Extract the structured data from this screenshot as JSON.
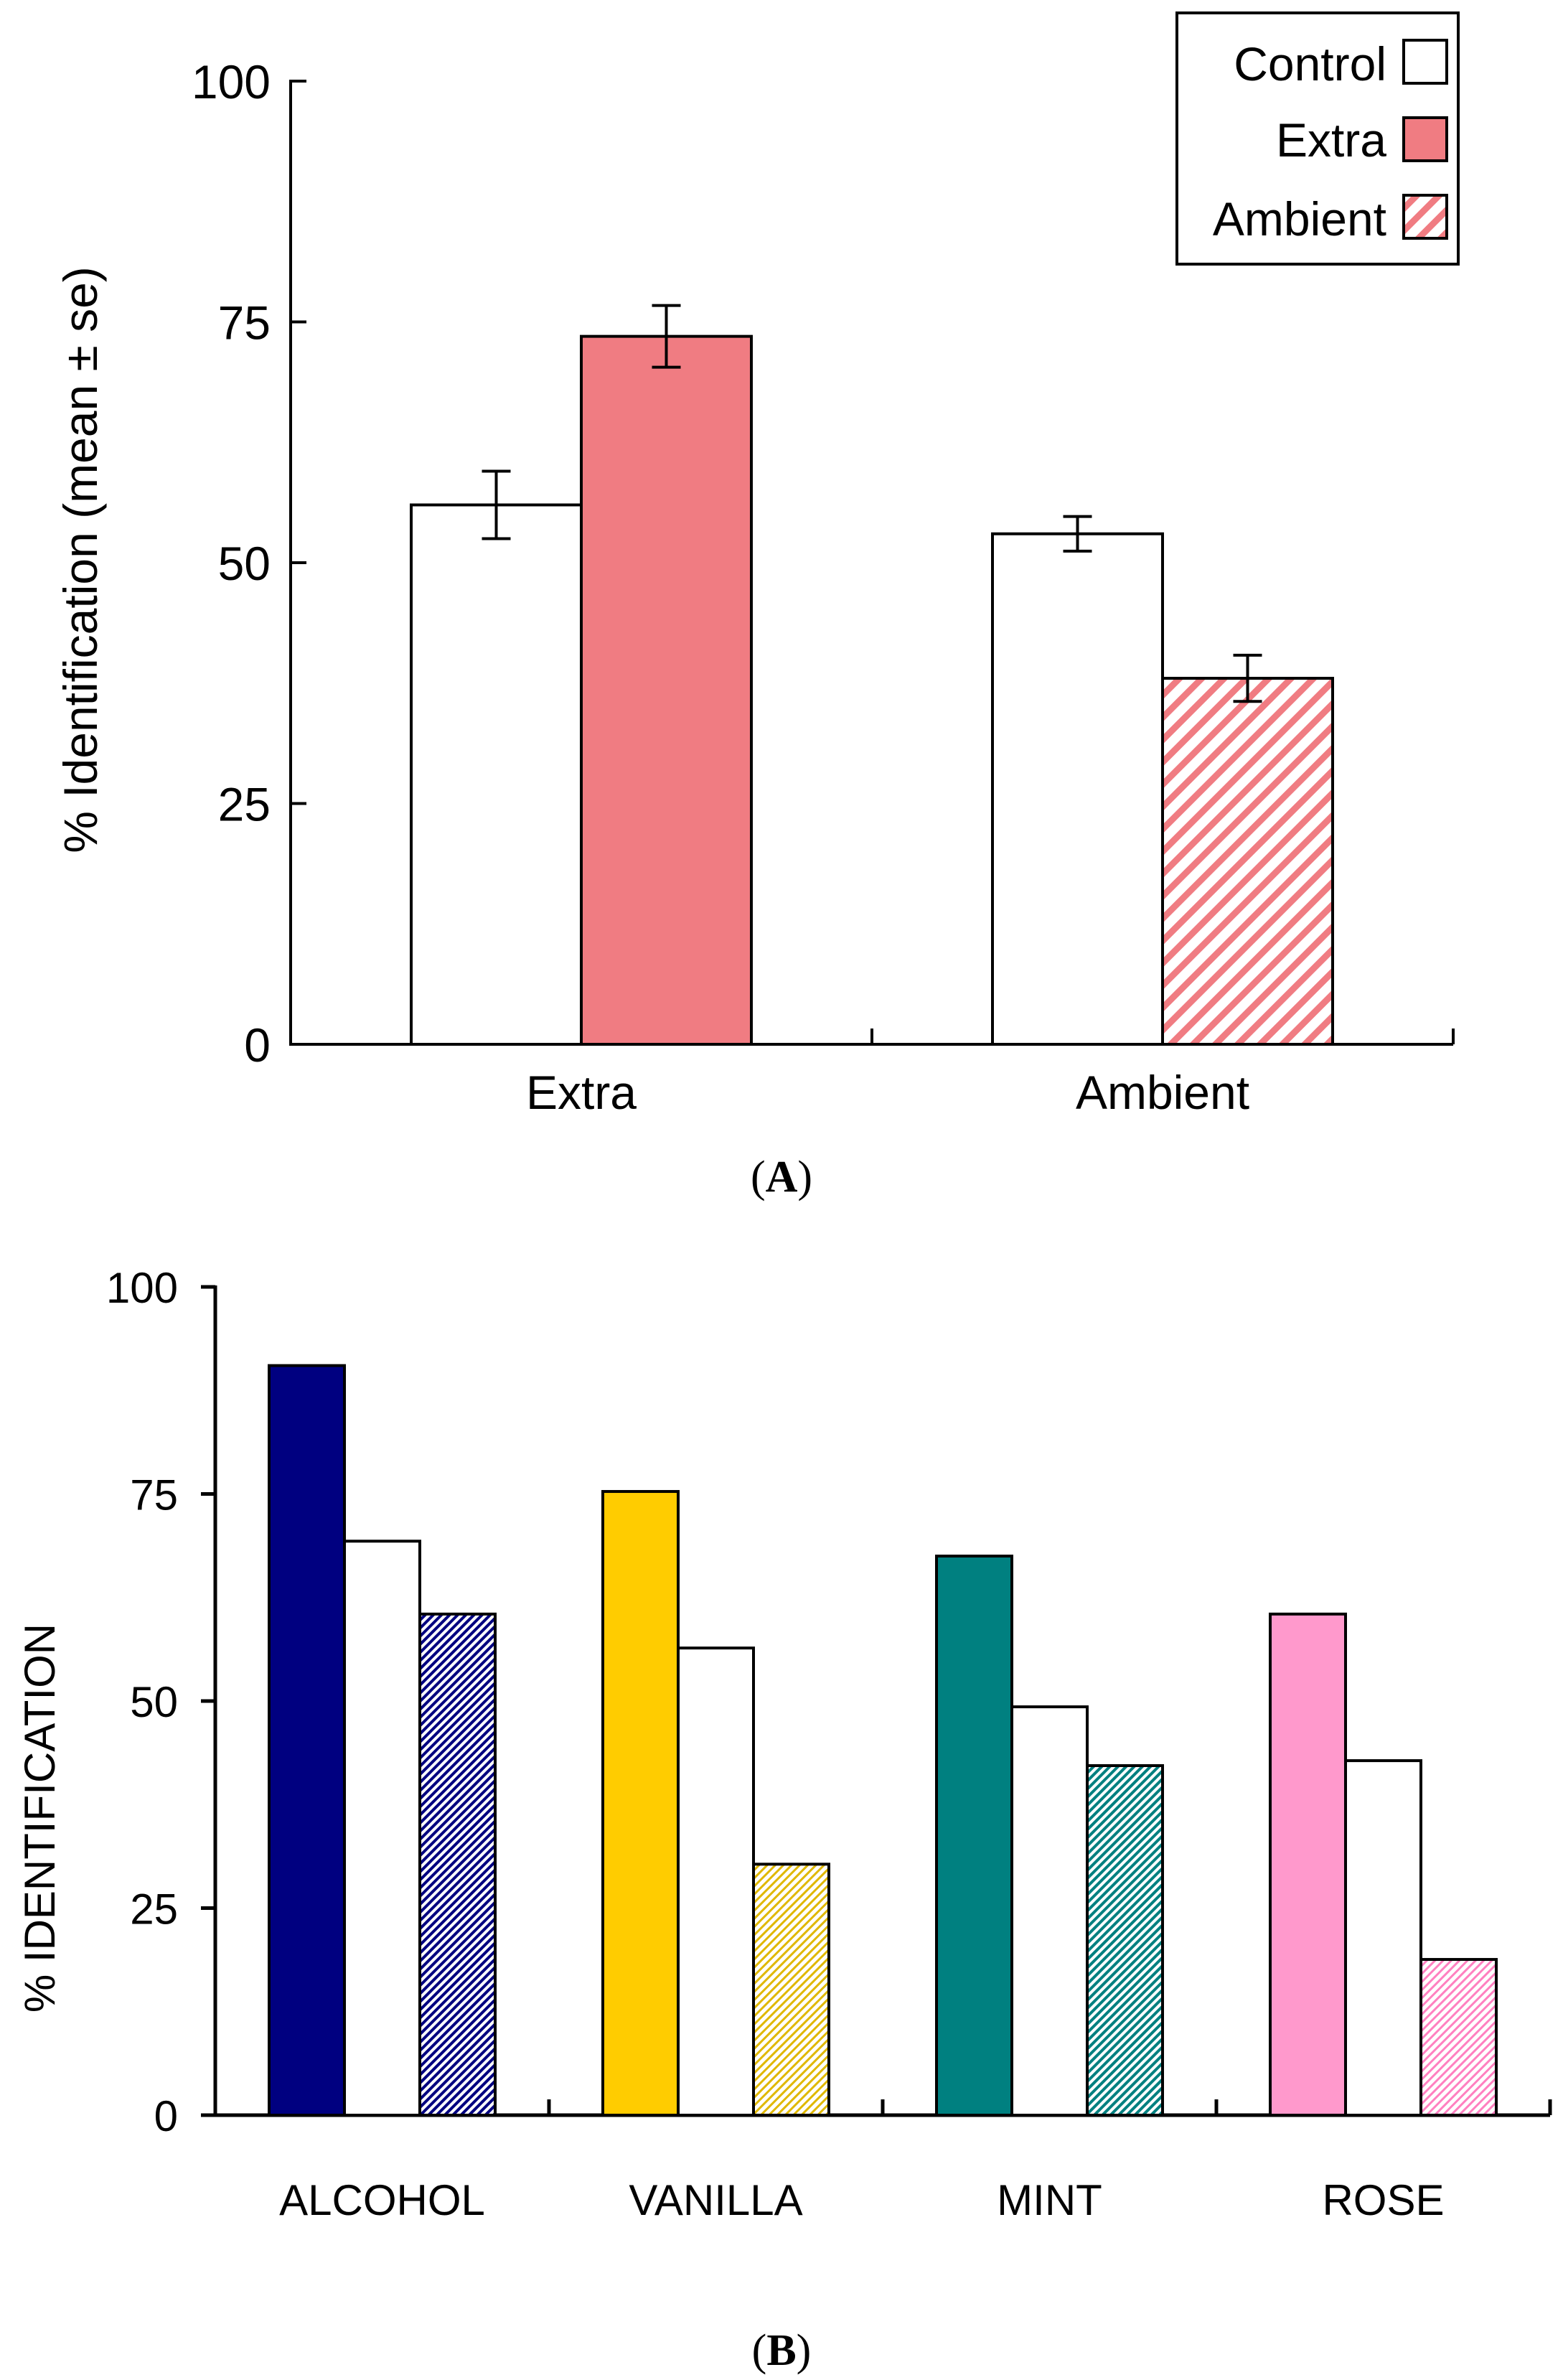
{
  "chart_data": [
    {
      "panel": "(A)",
      "panel_letter": "A",
      "type": "bar",
      "title": "",
      "xlabel": "",
      "ylabel": "% Identification (mean ± se)",
      "ylim": [
        0,
        100
      ],
      "yticks": [
        "0",
        "25",
        "50",
        "75",
        "100"
      ],
      "categories": [
        "Extra",
        "Ambient"
      ],
      "series": [
        {
          "name": "Control",
          "values": [
            56,
            53
          ],
          "errors": [
            3.5,
            1.8
          ],
          "color": "#ffffff",
          "pattern": "solid"
        },
        {
          "name": "Extra",
          "values": [
            73.5,
            null
          ],
          "errors": [
            3.2,
            null
          ],
          "color": "#f07c82",
          "pattern": "solid"
        },
        {
          "name": "Ambient",
          "values": [
            null,
            38
          ],
          "errors": [
            null,
            2.4
          ],
          "color": "#f07c82",
          "pattern": "hatch"
        }
      ],
      "legend": [
        "Control",
        "Extra",
        "Ambient"
      ],
      "legend_position": "top-right"
    },
    {
      "panel": "(B)",
      "panel_letter": "B",
      "type": "bar",
      "title": "",
      "xlabel": "",
      "ylabel": "% IDENTIFICATION",
      "ylim": [
        0,
        100
      ],
      "yticks": [
        "0",
        "25",
        "50",
        "75",
        "100"
      ],
      "categories": [
        "ALCOHOL",
        "VANILLA",
        "MINT",
        "ROSE"
      ],
      "category_colors": [
        "#000080",
        "#ffcc00",
        "#008080",
        "#ff99cc"
      ],
      "series": [
        {
          "name": "Extra",
          "pattern": "solid",
          "values": [
            90.5,
            75.3,
            67.5,
            60.5
          ]
        },
        {
          "name": "Control",
          "pattern": "white",
          "values": [
            69.3,
            56.4,
            49.3,
            42.8
          ]
        },
        {
          "name": "Ambient",
          "pattern": "hatch",
          "values": [
            60.5,
            30.3,
            42.2,
            18.8
          ]
        }
      ]
    }
  ]
}
